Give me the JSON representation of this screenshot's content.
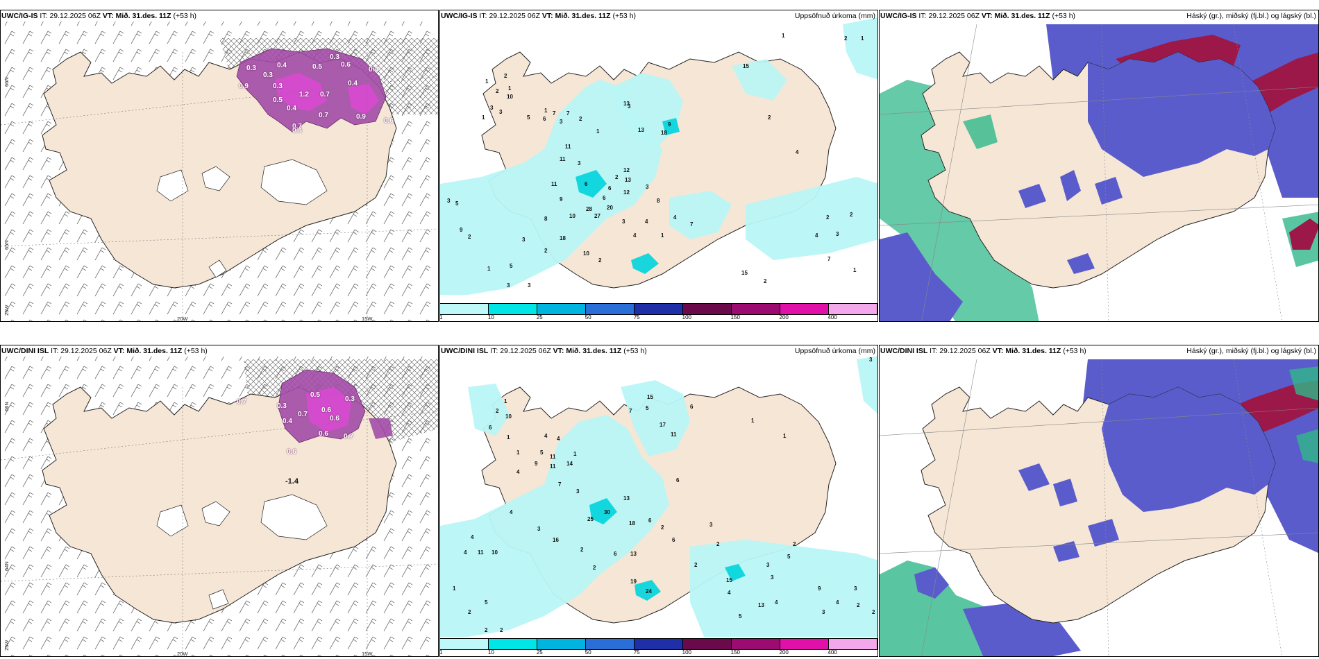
{
  "panels": [
    {
      "id": "p1",
      "model": "UWC/IG-IS",
      "it_label": "IT:",
      "it": "29.12.2025 06Z",
      "vt_label": "VT:",
      "vt": "Mið. 31.des. 11Z",
      "lead": "(+53 h)",
      "right": ""
    },
    {
      "id": "p2",
      "model": "UWC/IG-IS",
      "it_label": "IT:",
      "it": "29.12.2025 06Z",
      "vt_label": "VT:",
      "vt": "Mið. 31.des. 11Z",
      "lead": "(+53 h)",
      "right": "Uppsöfnuð úrkoma (mm)"
    },
    {
      "id": "p3",
      "model": "UWC/IG-IS",
      "it_label": "IT:",
      "it": "29.12.2025 06Z",
      "vt_label": "VT:",
      "vt": "Mið. 31.des. 11Z",
      "lead": "(+53 h)",
      "right": "Háský (gr.), miðský (fj.bl.) og lágský (bl.)"
    },
    {
      "id": "p4",
      "model": "UWC/DINI ISL",
      "it_label": "IT:",
      "it": "29.12.2025 06Z",
      "vt_label": "VT:",
      "vt": "Mið. 31.des. 11Z",
      "lead": "(+53 h)",
      "right": ""
    },
    {
      "id": "p5",
      "model": "UWC/DINI ISL",
      "it_label": "IT:",
      "it": "29.12.2025 06Z",
      "vt_label": "VT:",
      "vt": "Mið. 31.des. 11Z",
      "lead": "(+53 h)",
      "right": "Uppsöfnuð úrkoma (mm)"
    },
    {
      "id": "p6",
      "model": "UWC/DINI ISL",
      "it_label": "IT:",
      "it": "29.12.2025 06Z",
      "vt_label": "VT:",
      "vt": "Mið. 31.des. 11Z",
      "lead": "(+53 h)",
      "right": "Háský (gr.), miðský (fj.bl.) og lágský (bl.)"
    }
  ],
  "coords": {
    "lat66": "66N",
    "lat65": "65N",
    "lat64": "64N",
    "lon25": "25W",
    "lon20": "20W",
    "lon15": "15W"
  },
  "legend": {
    "ticks": [
      "1",
      "10",
      "25",
      "50",
      "75",
      "100",
      "150",
      "200",
      "400"
    ],
    "colors": [
      "#bff8f8",
      "#00e5e5",
      "#00b4e0",
      "#2a6ed8",
      "#1e2fa8",
      "#6a0a4a",
      "#9c0c70",
      "#e010a8",
      "#f4a8ec"
    ]
  },
  "colors": {
    "land": "#f5e6d6",
    "ocean": "#ffffff",
    "precip_light": "#b8f6f6",
    "precip_mid": "#00d4dc",
    "wind_purple": "#a44ca8",
    "wind_magenta": "#d84ad0",
    "cloud_high": "#5a5ccc",
    "cloud_mid": "#9c1848",
    "cloud_low": "#30b88a"
  },
  "wind_labels_p1": [
    "0.3",
    "0.4",
    "0.3",
    "0.5",
    "0.6",
    "0.3",
    "0.4",
    "0.3",
    "0.9",
    "1.2",
    "0.7",
    "0.5",
    "0.4",
    "0.4",
    "0.7",
    "0.9",
    "0.6",
    "0.7",
    "0.4"
  ],
  "wind_labels_p4": [
    "0.5",
    "0.3",
    "0.7",
    "0.6",
    "0.6",
    "0.3",
    "0.4",
    "0.7",
    "0.6",
    "0.7",
    "0.6"
  ],
  "annot_p4": "-1.4",
  "precip_p2": [
    "1",
    "2",
    "2",
    "1",
    "3",
    "1",
    "3",
    "10",
    "1",
    "5",
    "6",
    "7",
    "3",
    "7",
    "2",
    "1",
    "11",
    "3",
    "12",
    "2",
    "6",
    "13",
    "11",
    "6",
    "3",
    "11",
    "3",
    "12",
    "13",
    "8",
    "28",
    "27",
    "20",
    "6",
    "9",
    "10",
    "8",
    "18",
    "3",
    "4",
    "4",
    "1",
    "10",
    "2",
    "2",
    "3",
    "3",
    "5",
    "5",
    "1",
    "9",
    "2",
    "3",
    "3",
    "4",
    "7",
    "13",
    "18",
    "9",
    "15",
    "2",
    "2",
    "3",
    "4",
    "2",
    "1",
    "2",
    "1",
    "1",
    "15",
    "7",
    "4",
    "2"
  ],
  "precip_p5": [
    "1",
    "2",
    "10",
    "6",
    "4",
    "4",
    "1",
    "1",
    "5",
    "11",
    "14",
    "11",
    "9",
    "4",
    "7",
    "1",
    "3",
    "13",
    "15",
    "7",
    "18",
    "25",
    "30",
    "6",
    "5",
    "11",
    "4",
    "3",
    "6",
    "16",
    "2",
    "2",
    "4",
    "10",
    "4",
    "6",
    "13",
    "2",
    "24",
    "19",
    "6",
    "2",
    "15",
    "4",
    "5",
    "3",
    "3",
    "11",
    "17",
    "6",
    "2",
    "3",
    "2",
    "1",
    "1",
    "1",
    "2",
    "2",
    "2",
    "13",
    "9",
    "4",
    "3",
    "2",
    "5",
    "4",
    "5",
    "3",
    "2",
    "3"
  ]
}
